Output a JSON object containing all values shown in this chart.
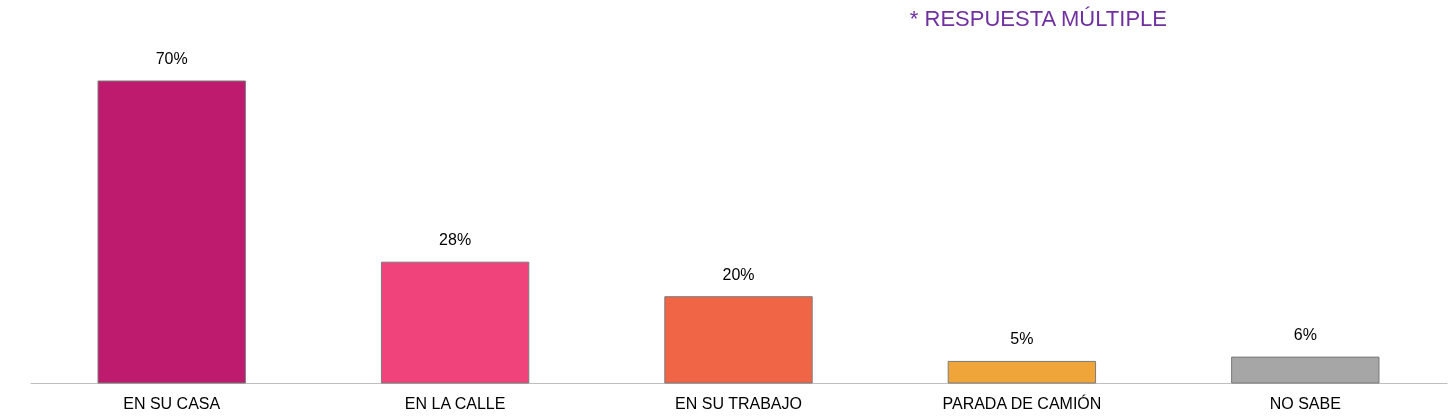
{
  "chart_data": {
    "type": "bar",
    "categories": [
      "EN SU CASA",
      "EN LA CALLE",
      "EN SU TRABAJO",
      "PARADA DE CAMIÓN",
      "NO SABE"
    ],
    "values": [
      70,
      28,
      20,
      5,
      6
    ],
    "value_labels": [
      "70%",
      "28%",
      "20%",
      "5%",
      "6%"
    ],
    "colors": [
      "#be1a6e",
      "#f0437c",
      "#f06545",
      "#f0a53a",
      "#a6a6a6"
    ],
    "annotations": [
      "* RESPUESTA MÚLTIPLE"
    ],
    "legend": false
  }
}
